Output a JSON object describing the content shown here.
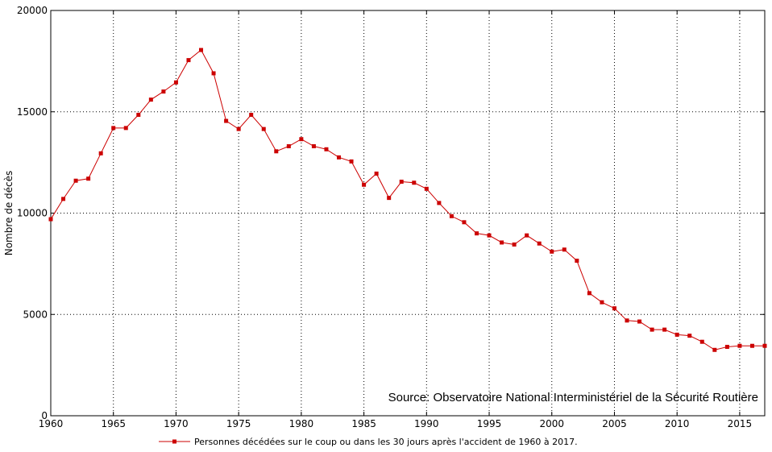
{
  "chart_data": {
    "type": "line",
    "title": "",
    "xlabel": "",
    "ylabel": "Nombre de décès",
    "xlim": [
      1960,
      2017
    ],
    "ylim": [
      0,
      20000
    ],
    "grid": true,
    "legend_position": "bottom",
    "x_ticks": [
      "1960",
      "1965",
      "1970",
      "1975",
      "1980",
      "1985",
      "1990",
      "1995",
      "2000",
      "2005",
      "2010",
      "2015"
    ],
    "y_ticks": [
      "0",
      "5000",
      "10000",
      "15000",
      "20000"
    ],
    "source_note": "Source: Observatoire National Interministériel de la Sécurité Routière",
    "line_color": "#cc0000",
    "series": [
      {
        "name": "Personnes décédées sur le coup ou dans les 30 jours après l'accident de 1960 à 2017.",
        "x": [
          1960,
          1961,
          1962,
          1963,
          1964,
          1965,
          1966,
          1967,
          1968,
          1969,
          1970,
          1971,
          1972,
          1973,
          1974,
          1975,
          1976,
          1977,
          1978,
          1979,
          1980,
          1981,
          1982,
          1983,
          1984,
          1985,
          1986,
          1987,
          1988,
          1989,
          1990,
          1991,
          1992,
          1993,
          1994,
          1995,
          1996,
          1997,
          1998,
          1999,
          2000,
          2001,
          2002,
          2003,
          2004,
          2005,
          2006,
          2007,
          2008,
          2009,
          2010,
          2011,
          2012,
          2013,
          2014,
          2015,
          2016,
          2017
        ],
        "values": [
          9700,
          10700,
          11600,
          11700,
          12950,
          14200,
          14200,
          14850,
          15600,
          16000,
          16450,
          17550,
          18050,
          16900,
          14550,
          14150,
          14850,
          14150,
          13050,
          13300,
          13650,
          13300,
          13150,
          12750,
          12550,
          11400,
          11950,
          10750,
          11550,
          11500,
          11200,
          10500,
          9850,
          9550,
          9000,
          8900,
          8550,
          8450,
          8900,
          8500,
          8100,
          8200,
          7650,
          6050,
          5600,
          5300,
          4700,
          4650,
          4250,
          4250,
          4000,
          3950,
          3650,
          3250,
          3400,
          3450,
          3450,
          3450
        ]
      }
    ]
  }
}
